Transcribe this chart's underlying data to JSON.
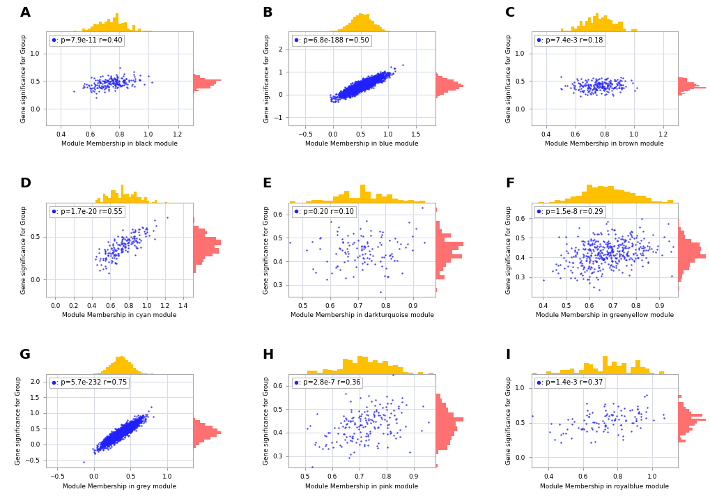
{
  "panels": [
    {
      "label": "A",
      "module": "black",
      "annotation": ": p=7.9e-11 r=0.40",
      "x_range": [
        0.3,
        1.3
      ],
      "y_range": [
        -0.3,
        1.4
      ],
      "x_ticks": [
        0.4,
        0.6,
        0.8,
        1.0,
        1.2
      ],
      "y_ticks": [
        0.0,
        0.5,
        1.0
      ],
      "x_center": 0.75,
      "y_center": 0.46,
      "x_spread": 0.1,
      "y_spread": 0.07,
      "n_points": 200,
      "slope": 0.3,
      "xlabel": "Module Membership in black module",
      "ylabel": "Gene significance for Group"
    },
    {
      "label": "B",
      "module": "blue",
      "annotation": ": p=6.8e-188 r=0.50",
      "x_range": [
        -0.8,
        1.85
      ],
      "y_range": [
        -1.35,
        2.8
      ],
      "x_ticks": [
        -0.5,
        0.0,
        0.5,
        1.0,
        1.5
      ],
      "y_ticks": [
        -1,
        0,
        1,
        2
      ],
      "x_center": 0.52,
      "y_center": 0.4,
      "x_spread": 0.19,
      "y_spread": 0.1,
      "n_points": 3000,
      "slope": 1.1,
      "xlabel": "Module Membership in blue module",
      "ylabel": "Gene significance for Group"
    },
    {
      "label": "C",
      "module": "brown",
      "annotation": ": p=7.4e-3 r=0.18",
      "x_range": [
        0.3,
        1.3
      ],
      "y_range": [
        -0.3,
        1.4
      ],
      "x_ticks": [
        0.4,
        0.6,
        0.8,
        1.0,
        1.2
      ],
      "y_ticks": [
        0.0,
        0.5,
        1.0
      ],
      "x_center": 0.77,
      "y_center": 0.42,
      "x_spread": 0.1,
      "y_spread": 0.07,
      "n_points": 220,
      "slope": 0.15,
      "xlabel": "Module Membership in brown module",
      "ylabel": "Gene significance for Group"
    },
    {
      "label": "D",
      "module": "cyan",
      "annotation": ": p=1.7e-20 r=0.55",
      "x_range": [
        -0.1,
        1.5
      ],
      "y_range": [
        -0.2,
        0.9
      ],
      "x_ticks": [
        0.0,
        0.2,
        0.4,
        0.6,
        0.8,
        1.0,
        1.2,
        1.4
      ],
      "y_ticks": [
        0.0,
        0.5
      ],
      "x_center": 0.73,
      "y_center": 0.39,
      "x_spread": 0.14,
      "y_spread": 0.07,
      "n_points": 170,
      "slope": 0.6,
      "xlabel": "Module Membership in cyan module",
      "ylabel": "Gene significance for Group"
    },
    {
      "label": "E",
      "module": "darkturquoise",
      "annotation": ": p=0.20 r=0.10",
      "x_range": [
        0.45,
        0.98
      ],
      "y_range": [
        0.25,
        0.65
      ],
      "x_ticks": [
        0.5,
        0.6,
        0.7,
        0.8,
        0.9
      ],
      "y_ticks": [
        0.3,
        0.4,
        0.5,
        0.6
      ],
      "x_center": 0.72,
      "y_center": 0.44,
      "x_spread": 0.09,
      "y_spread": 0.058,
      "n_points": 120,
      "slope": 0.08,
      "xlabel": "Module Membership in darkturquoise module",
      "ylabel": "Gene significance for Group"
    },
    {
      "label": "F",
      "module": "greenyellow",
      "annotation": ": p=1.5e-8 r=0.29",
      "x_range": [
        0.35,
        0.98
      ],
      "y_range": [
        0.2,
        0.68
      ],
      "x_ticks": [
        0.4,
        0.5,
        0.6,
        0.7,
        0.8,
        0.9
      ],
      "y_ticks": [
        0.3,
        0.4,
        0.5,
        0.6
      ],
      "x_center": 0.68,
      "y_center": 0.42,
      "x_spread": 0.1,
      "y_spread": 0.055,
      "n_points": 400,
      "slope": 0.22,
      "xlabel": "Module Membership in greenyellow module",
      "ylabel": "Gene significance for Group"
    },
    {
      "label": "G",
      "module": "grey",
      "annotation": ": p=5.7e-232 r=0.75",
      "x_range": [
        -0.65,
        1.35
      ],
      "y_range": [
        -0.75,
        2.25
      ],
      "x_ticks": [
        -0.5,
        0.0,
        0.5,
        1.0
      ],
      "y_ticks": [
        -0.5,
        0.0,
        0.5,
        1.0,
        1.5,
        2.0
      ],
      "x_center": 0.37,
      "y_center": 0.37,
      "x_spread": 0.13,
      "y_spread": 0.08,
      "n_points": 2500,
      "slope": 1.5,
      "xlabel": "Module Membership in grey module",
      "ylabel": "Gene significance for Group"
    },
    {
      "label": "H",
      "module": "pink",
      "annotation": ": p=2.8e-7 r=0.36",
      "x_range": [
        0.44,
        0.98
      ],
      "y_range": [
        0.25,
        0.65
      ],
      "x_ticks": [
        0.5,
        0.6,
        0.7,
        0.8,
        0.9
      ],
      "y_ticks": [
        0.3,
        0.4,
        0.5,
        0.6
      ],
      "x_center": 0.72,
      "y_center": 0.43,
      "x_spread": 0.09,
      "y_spread": 0.058,
      "n_points": 180,
      "slope": 0.3,
      "xlabel": "Module Membership in pink module",
      "ylabel": "Gene significance for Group"
    },
    {
      "label": "I",
      "module": "royalblue",
      "annotation": ": p=1.4e-3 r=0.37",
      "x_range": [
        0.3,
        1.15
      ],
      "y_range": [
        -0.15,
        1.2
      ],
      "x_ticks": [
        0.4,
        0.6,
        0.8,
        1.0
      ],
      "y_ticks": [
        0.0,
        0.5,
        1.0
      ],
      "x_center": 0.72,
      "y_center": 0.53,
      "x_spread": 0.14,
      "y_spread": 0.12,
      "n_points": 110,
      "slope": 0.35,
      "xlabel": "Module Membership in royalblue module",
      "ylabel": "Gene significance for Group"
    }
  ],
  "dot_color": "#2020ff",
  "dot_size": 3,
  "hist_color_top": "#FFC000",
  "hist_color_right": "#FF7070",
  "background_color": "#ffffff",
  "grid_color": "#d8dce8",
  "label_fontsize": 12,
  "annot_fontsize": 7,
  "axis_fontsize": 6.5,
  "title_fontsize": 14
}
